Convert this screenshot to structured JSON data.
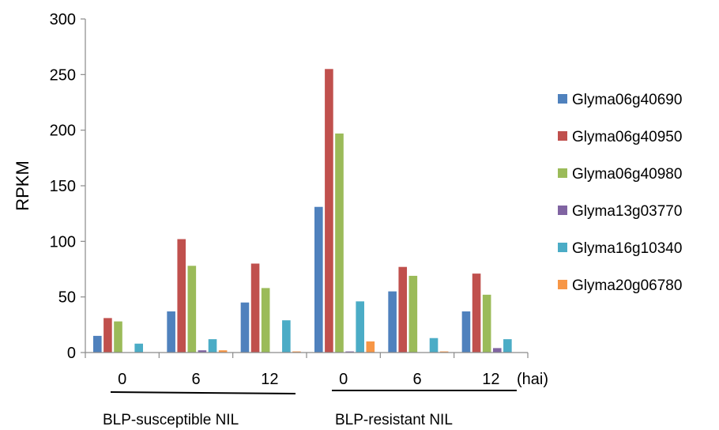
{
  "chart_data": {
    "type": "bar",
    "title": "",
    "ylabel": "RPKM",
    "xunit": "(hai)",
    "ylim": [
      0,
      300
    ],
    "yticks": [
      0,
      50,
      100,
      150,
      200,
      250,
      300
    ],
    "grid": false,
    "legend_position": "right",
    "categories": [
      "0",
      "6",
      "12",
      "0",
      "6",
      "12"
    ],
    "groups": [
      {
        "label": "BLP-susceptible NIL",
        "categories": [
          0,
          1,
          2
        ]
      },
      {
        "label": "BLP-resistant NIL",
        "categories": [
          3,
          4,
          5
        ]
      }
    ],
    "series": [
      {
        "name": "Glyma06g40690",
        "color": "#4F81BD",
        "values": [
          15,
          37,
          45,
          131,
          55,
          37
        ]
      },
      {
        "name": "Glyma06g40950",
        "color": "#C0504D",
        "values": [
          31,
          102,
          80,
          255,
          77,
          71
        ]
      },
      {
        "name": "Glyma06g40980",
        "color": "#9BBB59",
        "values": [
          28,
          78,
          58,
          197,
          69,
          52
        ]
      },
      {
        "name": "Glyma13g03770",
        "color": "#8064A2",
        "values": [
          0,
          2,
          0,
          1,
          0,
          4
        ]
      },
      {
        "name": "Glyma16g10340",
        "color": "#4BACC6",
        "values": [
          8,
          12,
          29,
          46,
          13,
          12
        ]
      },
      {
        "name": "Glyma20g06780",
        "color": "#F79646",
        "values": [
          0,
          2,
          1,
          10,
          1,
          0
        ]
      }
    ]
  }
}
